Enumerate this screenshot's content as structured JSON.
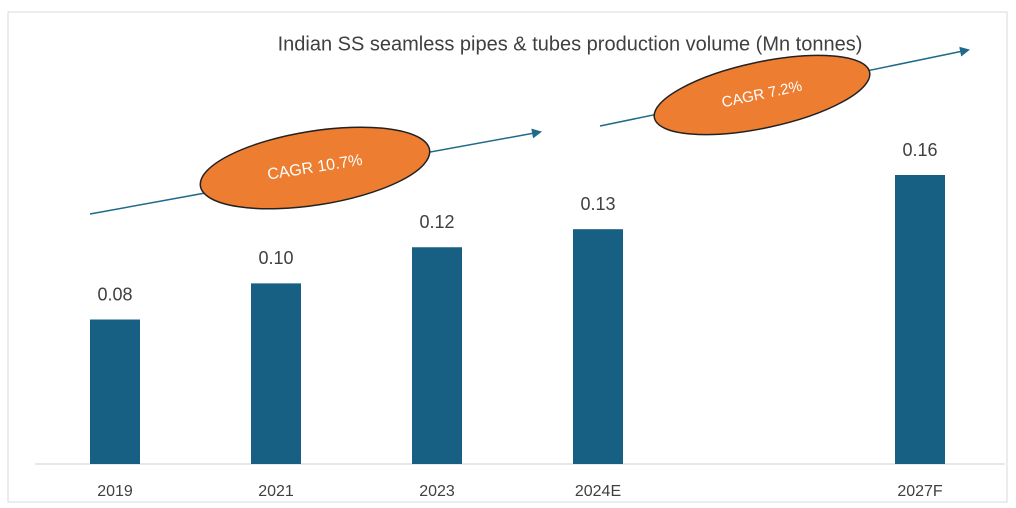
{
  "chart_data": {
    "type": "bar",
    "title": "Indian SS seamless pipes & tubes production volume (Mn tonnes)",
    "categories": [
      "2019",
      "2021",
      "2023",
      "2024E",
      null,
      "2027F"
    ],
    "values": [
      0.08,
      0.1,
      0.12,
      0.13,
      null,
      0.16
    ],
    "value_labels": [
      "0.08",
      "0.10",
      "0.12",
      "0.13",
      null,
      "0.16"
    ],
    "color": "#176083",
    "annotations": [
      "CAGR 10.7%",
      "CAGR 7.2%"
    ]
  }
}
